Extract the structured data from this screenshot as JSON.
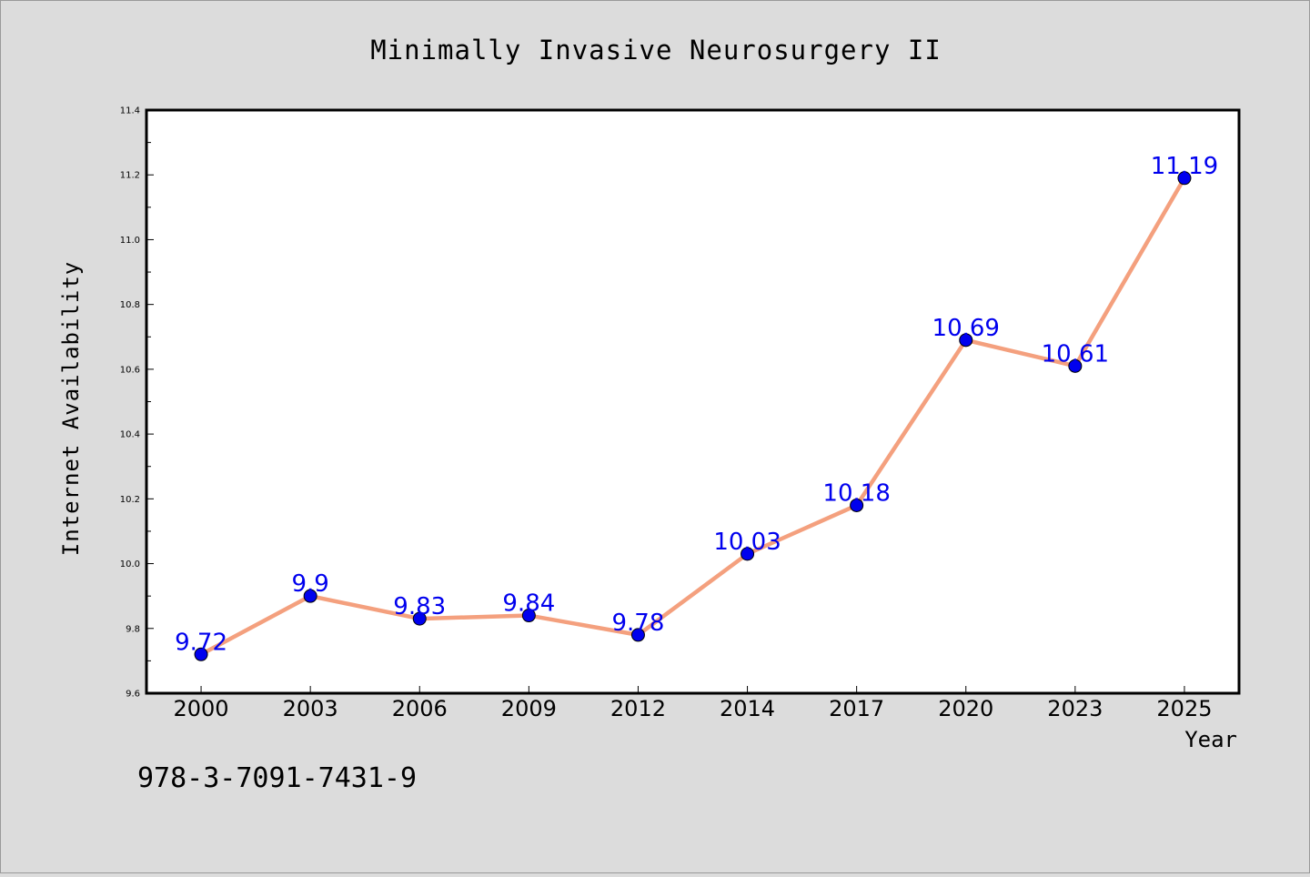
{
  "chart_data": {
    "type": "line",
    "title": "Minimally Invasive Neurosurgery II",
    "xlabel": "Year",
    "ylabel": "Internet Availability",
    "categories": [
      "2000",
      "2003",
      "2006",
      "2009",
      "2012",
      "2014",
      "2017",
      "2020",
      "2023",
      "2025"
    ],
    "series": [
      {
        "values": [
          9.72,
          9.9,
          9.83,
          9.84,
          9.78,
          10.03,
          10.18,
          10.69,
          10.61,
          11.19
        ],
        "labels": [
          "9.72",
          "9.9",
          "9.83",
          "9.84",
          "9.78",
          "10.03",
          "10.18",
          "10.69",
          "10.61",
          "11.19"
        ]
      }
    ],
    "ylim": [
      9.6,
      11.4
    ],
    "yticks": [
      "9.6",
      "9.8",
      "10.0",
      "10.2",
      "10.4",
      "10.6",
      "10.8",
      "11.0",
      "11.2",
      "11.4"
    ],
    "grid": false,
    "colors": {
      "line": "#f4a07e",
      "marker": "#0000ee",
      "data_label": "#0000ee",
      "plot_background": "#ffffff",
      "figure_background": "#dcdcdc"
    }
  },
  "footer": {
    "isbn": "978-3-7091-7431-9"
  }
}
